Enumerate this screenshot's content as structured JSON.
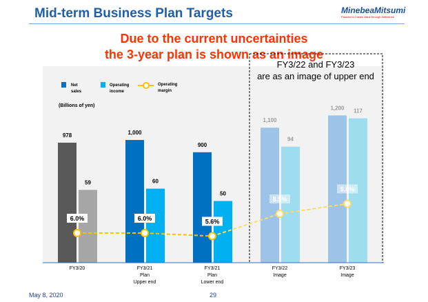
{
  "header": {
    "title": "Mid-term Business Plan Targets",
    "logo": "MinebeaMitsumi",
    "tagline": "Passion to Create Value through Difference"
  },
  "subtitle": {
    "line1": "Due to the current uncertainties",
    "line2": "the 3-year plan is shown as an image"
  },
  "footer": {
    "date": "May 8, 2020",
    "page": "29"
  },
  "colors": {
    "net_actual": "#595959",
    "op_actual": "#a6a6a6",
    "net_plan": "#0070c0",
    "op_plan": "#00b0f0",
    "net_image": "#9dc3e6",
    "op_image": "#9edcf0",
    "margin": "#ffc000"
  },
  "chart_data": {
    "type": "bar",
    "unit_label": "(Billions of yen)",
    "annotation": {
      "line1": "FY3/22 and FY3/23",
      "line2": "are as an image of upper end"
    },
    "legend": {
      "net": "Net sales",
      "net1": "Net",
      "net2": "sales",
      "op1": "Operating",
      "op2": "income",
      "m1": "Operating",
      "m2": "margin"
    },
    "categories": [
      [
        "FY3/20"
      ],
      [
        "FY3/21",
        "Plan",
        "Upper end"
      ],
      [
        "FY3/21",
        "Plan",
        "Lower end"
      ],
      [
        "FY3/22",
        "Image"
      ],
      [
        "FY3/23",
        "Image"
      ]
    ],
    "series": [
      {
        "name": "Net sales",
        "values": [
          978,
          1000,
          900,
          1100,
          1200
        ],
        "labels": [
          "978",
          "1,000",
          "900",
          "1,100",
          "1,200"
        ]
      },
      {
        "name": "Operating income",
        "values": [
          59,
          60,
          50,
          94,
          117
        ],
        "labels": [
          "59",
          "60",
          "50",
          "94",
          "117"
        ]
      },
      {
        "name": "Operating margin",
        "values": [
          6.0,
          6.0,
          5.6,
          8.5,
          9.8
        ],
        "labels": [
          "6.0%",
          "6.0%",
          "5.6%",
          "8.5%",
          "9.8%"
        ]
      }
    ]
  }
}
